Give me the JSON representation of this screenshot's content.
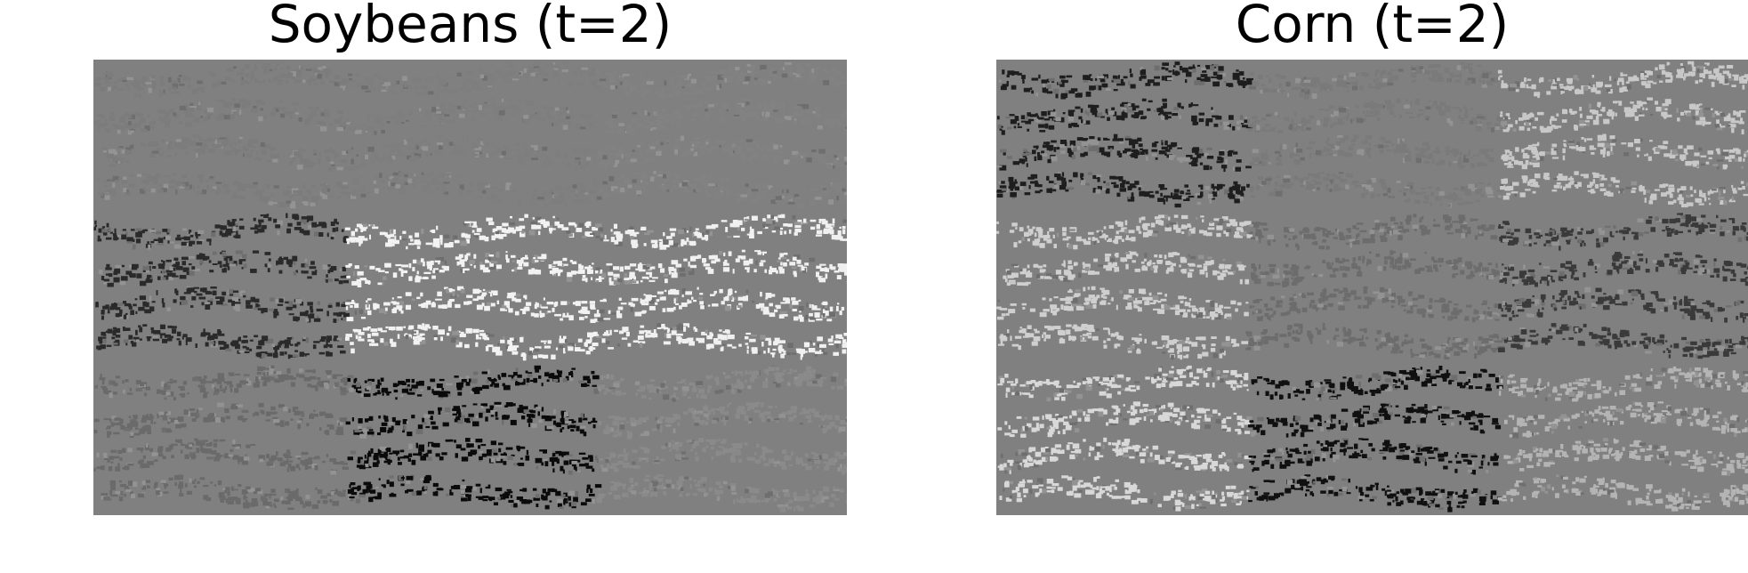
{
  "panels": [
    {
      "title": "Soybeans (t=2)",
      "base_color": "#808080",
      "grid": {
        "cols": 3,
        "rows": 3
      },
      "tiles": [
        [
          "#7c7c7c",
          "#7e7e7e",
          "#828282"
        ],
        [
          "#2a2a2a",
          "#f2f2f2",
          "#f0f0f0"
        ],
        [
          "#6a6a6a",
          "#0a0a0a",
          "#8a8a8a"
        ]
      ]
    },
    {
      "title": "Corn (t=2)",
      "base_color": "#808080",
      "grid": {
        "cols": 3,
        "rows": 3
      },
      "tiles": [
        [
          "#1e1e1e",
          "#7a7a7a",
          "#c8c8c8"
        ],
        [
          "#cfcfcf",
          "#6c6c6c",
          "#3a3a3a"
        ],
        [
          "#d8d8d8",
          "#101010",
          "#b4b4b4"
        ]
      ]
    }
  ]
}
